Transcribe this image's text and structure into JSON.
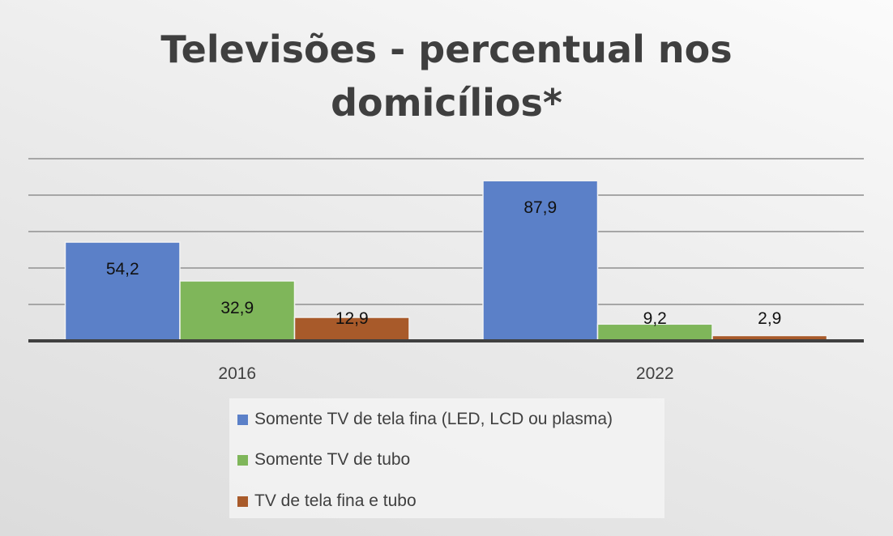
{
  "chart_data": {
    "type": "bar",
    "title": "Televisões - percentual nos domicílios*",
    "title_lines": [
      "Televisões - percentual nos",
      "domicílios*"
    ],
    "categories": [
      "2016",
      "2022"
    ],
    "series": [
      {
        "name": "Somente TV de tela fina (LED, LCD ou plasma)",
        "values": [
          54.2,
          87.9
        ],
        "labels": [
          "54,2",
          "87,9"
        ],
        "color": "#5b80c8"
      },
      {
        "name": "Somente TV de tubo",
        "values": [
          32.9,
          9.2
        ],
        "labels": [
          "32,9",
          "9,2"
        ],
        "color": "#7fb65a"
      },
      {
        "name": "TV de tela fina e tubo",
        "values": [
          12.9,
          2.9
        ],
        "labels": [
          "12,9",
          "2,9"
        ],
        "color": "#a85a2a"
      }
    ],
    "ylim": [
      0,
      100
    ],
    "gridlines": [
      20,
      40,
      60,
      80,
      100
    ],
    "grid": true,
    "y_tick_labels_shown": false,
    "legend": "bottom",
    "xlabel": "",
    "ylabel": ""
  }
}
